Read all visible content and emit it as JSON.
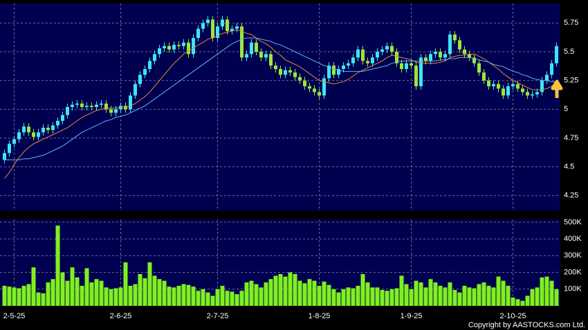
{
  "chart_data": [
    {
      "type": "candlestick",
      "open": [
        4.56,
        4.62,
        4.7,
        4.74,
        4.8,
        4.85,
        4.8,
        4.76,
        4.8,
        4.84,
        4.82,
        4.86,
        4.9,
        4.95,
        5.02,
        5.04,
        5.05,
        5.02,
        5.03,
        5.02,
        5.04,
        5.05,
        5.0,
        4.97,
        5.0,
        5.03,
        5.0,
        5.12,
        5.22,
        5.3,
        5.35,
        5.42,
        5.48,
        5.53,
        5.55,
        5.52,
        5.56,
        5.55,
        5.58,
        5.48,
        5.62,
        5.7,
        5.75,
        5.78,
        5.62,
        5.72,
        5.78,
        5.68,
        5.7,
        5.72,
        5.45,
        5.48,
        5.58,
        5.5,
        5.45,
        5.48,
        5.38,
        5.35,
        5.3,
        5.34,
        5.32,
        5.28,
        5.25,
        5.2,
        5.18,
        5.15,
        5.12,
        5.27,
        5.38,
        5.3,
        5.35,
        5.38,
        5.4,
        5.45,
        5.52,
        5.42,
        5.4,
        5.45,
        5.5,
        5.52,
        5.55,
        5.5,
        5.4,
        5.35,
        5.4,
        5.38,
        5.2,
        5.45,
        5.42,
        5.48,
        5.5,
        5.45,
        5.48,
        5.65,
        5.6,
        5.52,
        5.48,
        5.45,
        5.4,
        5.32,
        5.25,
        5.2,
        5.22,
        5.18,
        5.12,
        5.2,
        5.22,
        5.18,
        5.15,
        5.12,
        5.13,
        5.15,
        5.25,
        5.3,
        5.4
      ],
      "high": [
        4.65,
        4.73,
        4.77,
        4.83,
        4.88,
        4.88,
        4.83,
        4.83,
        4.87,
        4.87,
        4.89,
        4.93,
        4.98,
        5.05,
        5.07,
        5.08,
        5.08,
        5.06,
        5.06,
        5.07,
        5.08,
        5.08,
        5.03,
        5.03,
        5.06,
        5.06,
        5.15,
        5.25,
        5.33,
        5.38,
        5.45,
        5.51,
        5.56,
        5.58,
        5.58,
        5.59,
        5.59,
        5.61,
        5.61,
        5.65,
        5.73,
        5.78,
        5.81,
        5.81,
        5.75,
        5.81,
        5.81,
        5.73,
        5.75,
        5.75,
        5.51,
        5.61,
        5.61,
        5.53,
        5.51,
        5.51,
        5.41,
        5.38,
        5.37,
        5.37,
        5.35,
        5.31,
        5.28,
        5.23,
        5.21,
        5.18,
        5.3,
        5.41,
        5.41,
        5.38,
        5.41,
        5.43,
        5.48,
        5.55,
        5.55,
        5.45,
        5.48,
        5.53,
        5.55,
        5.58,
        5.58,
        5.53,
        5.43,
        5.43,
        5.43,
        5.41,
        5.48,
        5.48,
        5.51,
        5.53,
        5.53,
        5.51,
        5.68,
        5.68,
        5.63,
        5.55,
        5.51,
        5.48,
        5.43,
        5.35,
        5.28,
        5.25,
        5.25,
        5.21,
        5.23,
        5.25,
        5.25,
        5.21,
        5.18,
        5.16,
        5.18,
        5.28,
        5.33,
        5.43,
        5.58
      ],
      "low": [
        4.53,
        4.59,
        4.67,
        4.71,
        4.77,
        4.77,
        4.73,
        4.73,
        4.77,
        4.79,
        4.79,
        4.83,
        4.87,
        4.92,
        4.99,
        5.01,
        4.99,
        4.99,
        4.99,
        4.99,
        5.01,
        4.97,
        4.94,
        4.94,
        4.97,
        4.97,
        4.97,
        5.09,
        5.19,
        5.27,
        5.32,
        5.39,
        5.45,
        5.5,
        5.49,
        5.49,
        5.52,
        5.52,
        5.45,
        5.45,
        5.59,
        5.67,
        5.72,
        5.59,
        5.59,
        5.69,
        5.65,
        5.65,
        5.67,
        5.42,
        5.42,
        5.45,
        5.47,
        5.42,
        5.42,
        5.35,
        5.32,
        5.27,
        5.27,
        5.29,
        5.25,
        5.22,
        5.17,
        5.15,
        5.12,
        5.09,
        5.09,
        5.24,
        5.27,
        5.27,
        5.32,
        5.35,
        5.37,
        5.42,
        5.39,
        5.37,
        5.37,
        5.42,
        5.47,
        5.49,
        5.47,
        5.37,
        5.32,
        5.32,
        5.35,
        5.17,
        5.17,
        5.39,
        5.39,
        5.45,
        5.42,
        5.42,
        5.45,
        5.57,
        5.49,
        5.45,
        5.42,
        5.37,
        5.29,
        5.22,
        5.17,
        5.17,
        5.15,
        5.09,
        5.09,
        5.17,
        5.15,
        5.12,
        5.09,
        5.09,
        5.1,
        5.12,
        5.22,
        5.27,
        5.37
      ],
      "close": [
        4.62,
        4.7,
        4.74,
        4.8,
        4.85,
        4.8,
        4.76,
        4.8,
        4.84,
        4.82,
        4.86,
        4.9,
        4.95,
        5.02,
        5.04,
        5.05,
        5.02,
        5.03,
        5.02,
        5.04,
        5.05,
        5.0,
        4.97,
        5.0,
        5.03,
        5.0,
        5.12,
        5.22,
        5.3,
        5.35,
        5.42,
        5.48,
        5.53,
        5.55,
        5.52,
        5.56,
        5.55,
        5.58,
        5.48,
        5.62,
        5.7,
        5.75,
        5.78,
        5.62,
        5.72,
        5.78,
        5.68,
        5.7,
        5.72,
        5.45,
        5.48,
        5.58,
        5.5,
        5.45,
        5.48,
        5.38,
        5.35,
        5.3,
        5.34,
        5.32,
        5.28,
        5.25,
        5.2,
        5.18,
        5.15,
        5.12,
        5.27,
        5.38,
        5.3,
        5.35,
        5.38,
        5.4,
        5.45,
        5.52,
        5.42,
        5.4,
        5.45,
        5.5,
        5.52,
        5.55,
        5.5,
        5.4,
        5.35,
        5.4,
        5.38,
        5.2,
        5.45,
        5.42,
        5.48,
        5.5,
        5.45,
        5.48,
        5.65,
        5.6,
        5.52,
        5.48,
        5.45,
        5.4,
        5.32,
        5.25,
        5.2,
        5.22,
        5.18,
        5.12,
        5.2,
        5.22,
        5.18,
        5.15,
        5.12,
        5.13,
        5.15,
        5.25,
        5.3,
        5.4,
        5.55
      ],
      "up_color": "#3ee6f5",
      "down_color": "#9ce63a",
      "series": [
        {
          "color": "#e8892a",
          "values": [
            4.4,
            4.45,
            4.52,
            4.58,
            4.63,
            4.67,
            4.7,
            4.72,
            4.74,
            4.76,
            4.78,
            4.8,
            4.82,
            4.84,
            4.87,
            4.9,
            4.93,
            4.95,
            4.97,
            4.99,
            5.0,
            5.01,
            5.01,
            5.01,
            5.02,
            5.02,
            5.03,
            5.05,
            5.08,
            5.11,
            5.15,
            5.2,
            5.25,
            5.3,
            5.35,
            5.4,
            5.44,
            5.48,
            5.51,
            5.53,
            5.56,
            5.58,
            5.61,
            5.62,
            5.64,
            5.66,
            5.67,
            5.68,
            5.69,
            5.68,
            5.66,
            5.65,
            5.62,
            5.59,
            5.57,
            5.54,
            5.5,
            5.47,
            5.43,
            5.41,
            5.39,
            5.37,
            5.34,
            5.31,
            5.28,
            5.25,
            5.24,
            5.23,
            5.22,
            5.23,
            5.24,
            5.26,
            5.29,
            5.32,
            5.34,
            5.36,
            5.38,
            5.4,
            5.42,
            5.45,
            5.47,
            5.46,
            5.45,
            5.44,
            5.43,
            5.41,
            5.4,
            5.4,
            5.4,
            5.4,
            5.41,
            5.42,
            5.45,
            5.46,
            5.47,
            5.47,
            5.48,
            5.48,
            5.46,
            5.44,
            5.41,
            5.38,
            5.35,
            5.31,
            5.28,
            5.25,
            5.23,
            5.21,
            5.19,
            5.17,
            5.17,
            5.17,
            5.18,
            5.2,
            5.23
          ]
        },
        {
          "color": "#5fb4f5",
          "values": [
            4.56,
            4.56,
            4.56,
            4.56,
            4.57,
            4.57,
            4.58,
            4.59,
            4.6,
            4.62,
            4.64,
            4.66,
            4.68,
            4.71,
            4.74,
            4.77,
            4.8,
            4.82,
            4.84,
            4.86,
            4.88,
            4.9,
            4.91,
            4.93,
            4.94,
            4.95,
            4.97,
            4.99,
            5.01,
            5.03,
            5.06,
            5.09,
            5.12,
            5.15,
            5.18,
            5.21,
            5.24,
            5.27,
            5.3,
            5.33,
            5.36,
            5.39,
            5.42,
            5.45,
            5.48,
            5.51,
            5.54,
            5.57,
            5.59,
            5.61,
            5.62,
            5.62,
            5.62,
            5.61,
            5.6,
            5.59,
            5.57,
            5.56,
            5.54,
            5.52,
            5.5,
            5.48,
            5.46,
            5.44,
            5.42,
            5.4,
            5.38,
            5.37,
            5.35,
            5.34,
            5.33,
            5.33,
            5.33,
            5.33,
            5.33,
            5.34,
            5.35,
            5.36,
            5.37,
            5.38,
            5.4,
            5.41,
            5.42,
            5.42,
            5.42,
            5.42,
            5.42,
            5.42,
            5.42,
            5.42,
            5.43,
            5.43,
            5.44,
            5.44,
            5.45,
            5.45,
            5.45,
            5.44,
            5.43,
            5.42,
            5.41,
            5.39,
            5.38,
            5.37,
            5.35,
            5.33,
            5.32,
            5.3,
            5.29,
            5.27,
            5.26,
            5.25,
            5.25,
            5.24,
            5.24
          ]
        }
      ],
      "ylim": [
        4.12,
        5.92
      ],
      "yticks": [
        4.25,
        4.5,
        4.75,
        5,
        5.25,
        5.5,
        5.75
      ],
      "grid": true
    },
    {
      "type": "bar",
      "categories": [
        null,
        null,
        "2-5-25",
        null,
        null,
        null,
        null,
        null,
        null,
        null,
        null,
        null,
        null,
        null,
        null,
        null,
        null,
        null,
        null,
        null,
        null,
        null,
        null,
        null,
        "2-6-25",
        null,
        null,
        null,
        null,
        null,
        null,
        null,
        null,
        null,
        null,
        null,
        null,
        null,
        null,
        null,
        null,
        null,
        null,
        null,
        "2-7-25",
        null,
        null,
        null,
        null,
        null,
        null,
        null,
        null,
        null,
        null,
        null,
        null,
        null,
        null,
        null,
        null,
        null,
        null,
        null,
        null,
        "1-8-25",
        null,
        null,
        null,
        null,
        null,
        null,
        null,
        null,
        null,
        null,
        null,
        null,
        null,
        null,
        null,
        null,
        null,
        null,
        "1-9-25",
        null,
        null,
        null,
        null,
        null,
        null,
        null,
        null,
        null,
        null,
        null,
        null,
        null,
        null,
        null,
        null,
        null,
        null,
        null,
        null,
        "2-10-25",
        null,
        null,
        null,
        null,
        null,
        null,
        null,
        null,
        null
      ],
      "values": [
        120000,
        115000,
        110000,
        105000,
        120000,
        130000,
        230000,
        80000,
        75000,
        140000,
        160000,
        480000,
        200000,
        150000,
        230000,
        170000,
        120000,
        225000,
        140000,
        160000,
        150000,
        110000,
        100000,
        105000,
        110000,
        260000,
        120000,
        130000,
        190000,
        165000,
        260000,
        180000,
        160000,
        150000,
        115000,
        110000,
        120000,
        130000,
        125000,
        115000,
        90000,
        100000,
        80000,
        60000,
        100000,
        120000,
        90000,
        85000,
        70000,
        90000,
        140000,
        150000,
        130000,
        110000,
        140000,
        160000,
        180000,
        190000,
        175000,
        200000,
        190000,
        150000,
        135000,
        160000,
        150000,
        120000,
        145000,
        125000,
        100000,
        80000,
        100000,
        110000,
        105000,
        120000,
        190000,
        140000,
        110000,
        110000,
        95000,
        90000,
        100000,
        105000,
        180000,
        130000,
        100000,
        150000,
        140000,
        110000,
        160000,
        140000,
        120000,
        110000,
        140000,
        95000,
        80000,
        120000,
        110000,
        105000,
        130000,
        140000,
        120000,
        110000,
        175000,
        150000,
        120000,
        50000,
        40000,
        30000,
        60000,
        100000,
        110000,
        170000,
        175000,
        150000,
        100000
      ],
      "color": "#7ff01e",
      "ylim": [
        0,
        516000
      ],
      "yticks": [
        {
          "value": 100000,
          "label": "100K"
        },
        {
          "value": 200000,
          "label": "200K"
        },
        {
          "value": 300000,
          "label": "300K"
        },
        {
          "value": 400000,
          "label": "400K"
        },
        {
          "value": 500000,
          "label": "500K"
        }
      ],
      "grid": true
    }
  ],
  "footer": "Copyright by AASTOCKS.com Ltd."
}
